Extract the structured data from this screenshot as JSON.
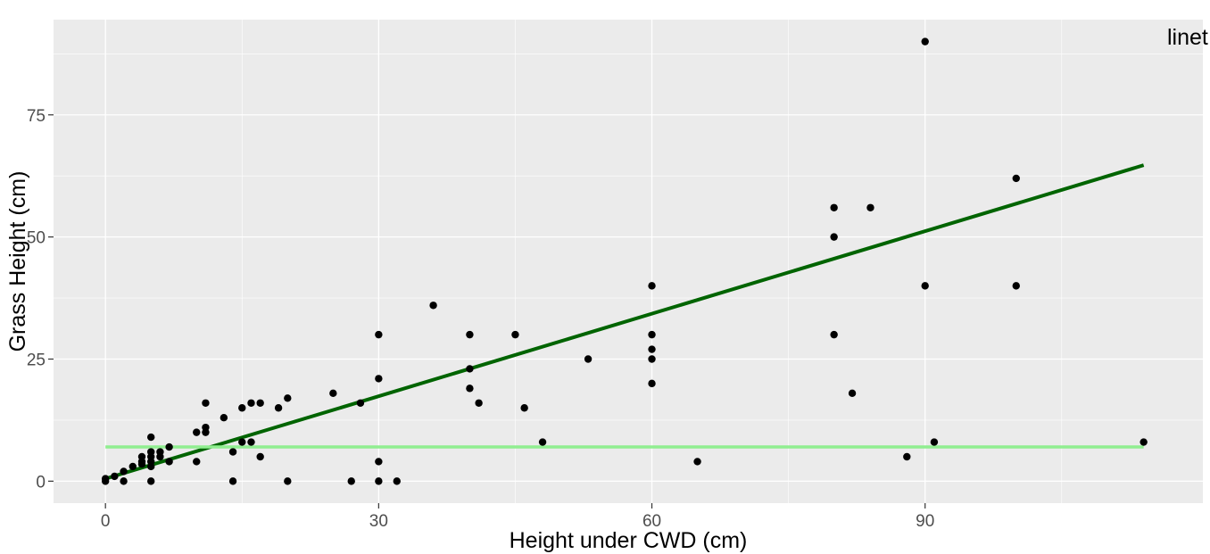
{
  "chart_data": {
    "type": "scatter",
    "title": "",
    "xlabel": "Height under CWD (cm)",
    "ylabel": "Grass Height (cm)",
    "xlim": [
      -5.7,
      120.5
    ],
    "ylim": [
      -4.5,
      94.5
    ],
    "x_ticks": [
      0,
      30,
      60,
      90
    ],
    "y_ticks": [
      0,
      25,
      50,
      75
    ],
    "x_tick_labels": [
      "0",
      "30",
      "60",
      "90"
    ],
    "y_tick_labels": [
      "0",
      "25",
      "50",
      "75"
    ],
    "grid": true,
    "legend_title": "linet",
    "legend_position": "top-right",
    "colors": {
      "panel": "#EBEBEB",
      "grid": "#FFFFFF",
      "points": "#000000",
      "fit_line": "#006400",
      "mean_line": "#90EE90",
      "tick_marks": "#333333"
    },
    "points": [
      {
        "x": 0,
        "y": 0
      },
      {
        "x": 0,
        "y": 0.5
      },
      {
        "x": 1,
        "y": 1
      },
      {
        "x": 2,
        "y": 2
      },
      {
        "x": 2,
        "y": 0
      },
      {
        "x": 3,
        "y": 3
      },
      {
        "x": 4,
        "y": 4
      },
      {
        "x": 4,
        "y": 5
      },
      {
        "x": 4,
        "y": 3.5
      },
      {
        "x": 5,
        "y": 6
      },
      {
        "x": 5,
        "y": 5
      },
      {
        "x": 5,
        "y": 4
      },
      {
        "x": 5,
        "y": 3
      },
      {
        "x": 5,
        "y": 9
      },
      {
        "x": 5,
        "y": 0
      },
      {
        "x": 6,
        "y": 5
      },
      {
        "x": 6,
        "y": 6
      },
      {
        "x": 7,
        "y": 4
      },
      {
        "x": 7,
        "y": 7
      },
      {
        "x": 10,
        "y": 10
      },
      {
        "x": 10,
        "y": 4
      },
      {
        "x": 11,
        "y": 10
      },
      {
        "x": 11,
        "y": 11
      },
      {
        "x": 11,
        "y": 16
      },
      {
        "x": 13,
        "y": 13
      },
      {
        "x": 14,
        "y": 6
      },
      {
        "x": 14,
        "y": 0
      },
      {
        "x": 15,
        "y": 15
      },
      {
        "x": 15,
        "y": 8
      },
      {
        "x": 16,
        "y": 16
      },
      {
        "x": 16,
        "y": 8
      },
      {
        "x": 17,
        "y": 16
      },
      {
        "x": 17,
        "y": 5
      },
      {
        "x": 19,
        "y": 15
      },
      {
        "x": 20,
        "y": 17
      },
      {
        "x": 20,
        "y": 0
      },
      {
        "x": 25,
        "y": 18
      },
      {
        "x": 27,
        "y": 0
      },
      {
        "x": 28,
        "y": 16
      },
      {
        "x": 30,
        "y": 30
      },
      {
        "x": 30,
        "y": 21
      },
      {
        "x": 30,
        "y": 4
      },
      {
        "x": 30,
        "y": 0
      },
      {
        "x": 32,
        "y": 0
      },
      {
        "x": 36,
        "y": 36
      },
      {
        "x": 40,
        "y": 30
      },
      {
        "x": 40,
        "y": 23
      },
      {
        "x": 40,
        "y": 19
      },
      {
        "x": 41,
        "y": 16
      },
      {
        "x": 45,
        "y": 30
      },
      {
        "x": 46,
        "y": 15
      },
      {
        "x": 48,
        "y": 8
      },
      {
        "x": 53,
        "y": 25
      },
      {
        "x": 60,
        "y": 40
      },
      {
        "x": 60,
        "y": 30
      },
      {
        "x": 60,
        "y": 27
      },
      {
        "x": 60,
        "y": 25
      },
      {
        "x": 60,
        "y": 20
      },
      {
        "x": 65,
        "y": 4
      },
      {
        "x": 80,
        "y": 56
      },
      {
        "x": 80,
        "y": 50
      },
      {
        "x": 80,
        "y": 30
      },
      {
        "x": 82,
        "y": 18
      },
      {
        "x": 84,
        "y": 56
      },
      {
        "x": 88,
        "y": 5
      },
      {
        "x": 90,
        "y": 90
      },
      {
        "x": 90,
        "y": 40
      },
      {
        "x": 91,
        "y": 8
      },
      {
        "x": 100,
        "y": 62
      },
      {
        "x": 100,
        "y": 40
      },
      {
        "x": 114,
        "y": 8
      }
    ],
    "lines": [
      {
        "kind": "fit",
        "x": [
          0,
          114
        ],
        "y": [
          0.5,
          64.7
        ]
      },
      {
        "kind": "mean",
        "x": [
          0,
          114
        ],
        "y": [
          7,
          7
        ]
      }
    ]
  }
}
